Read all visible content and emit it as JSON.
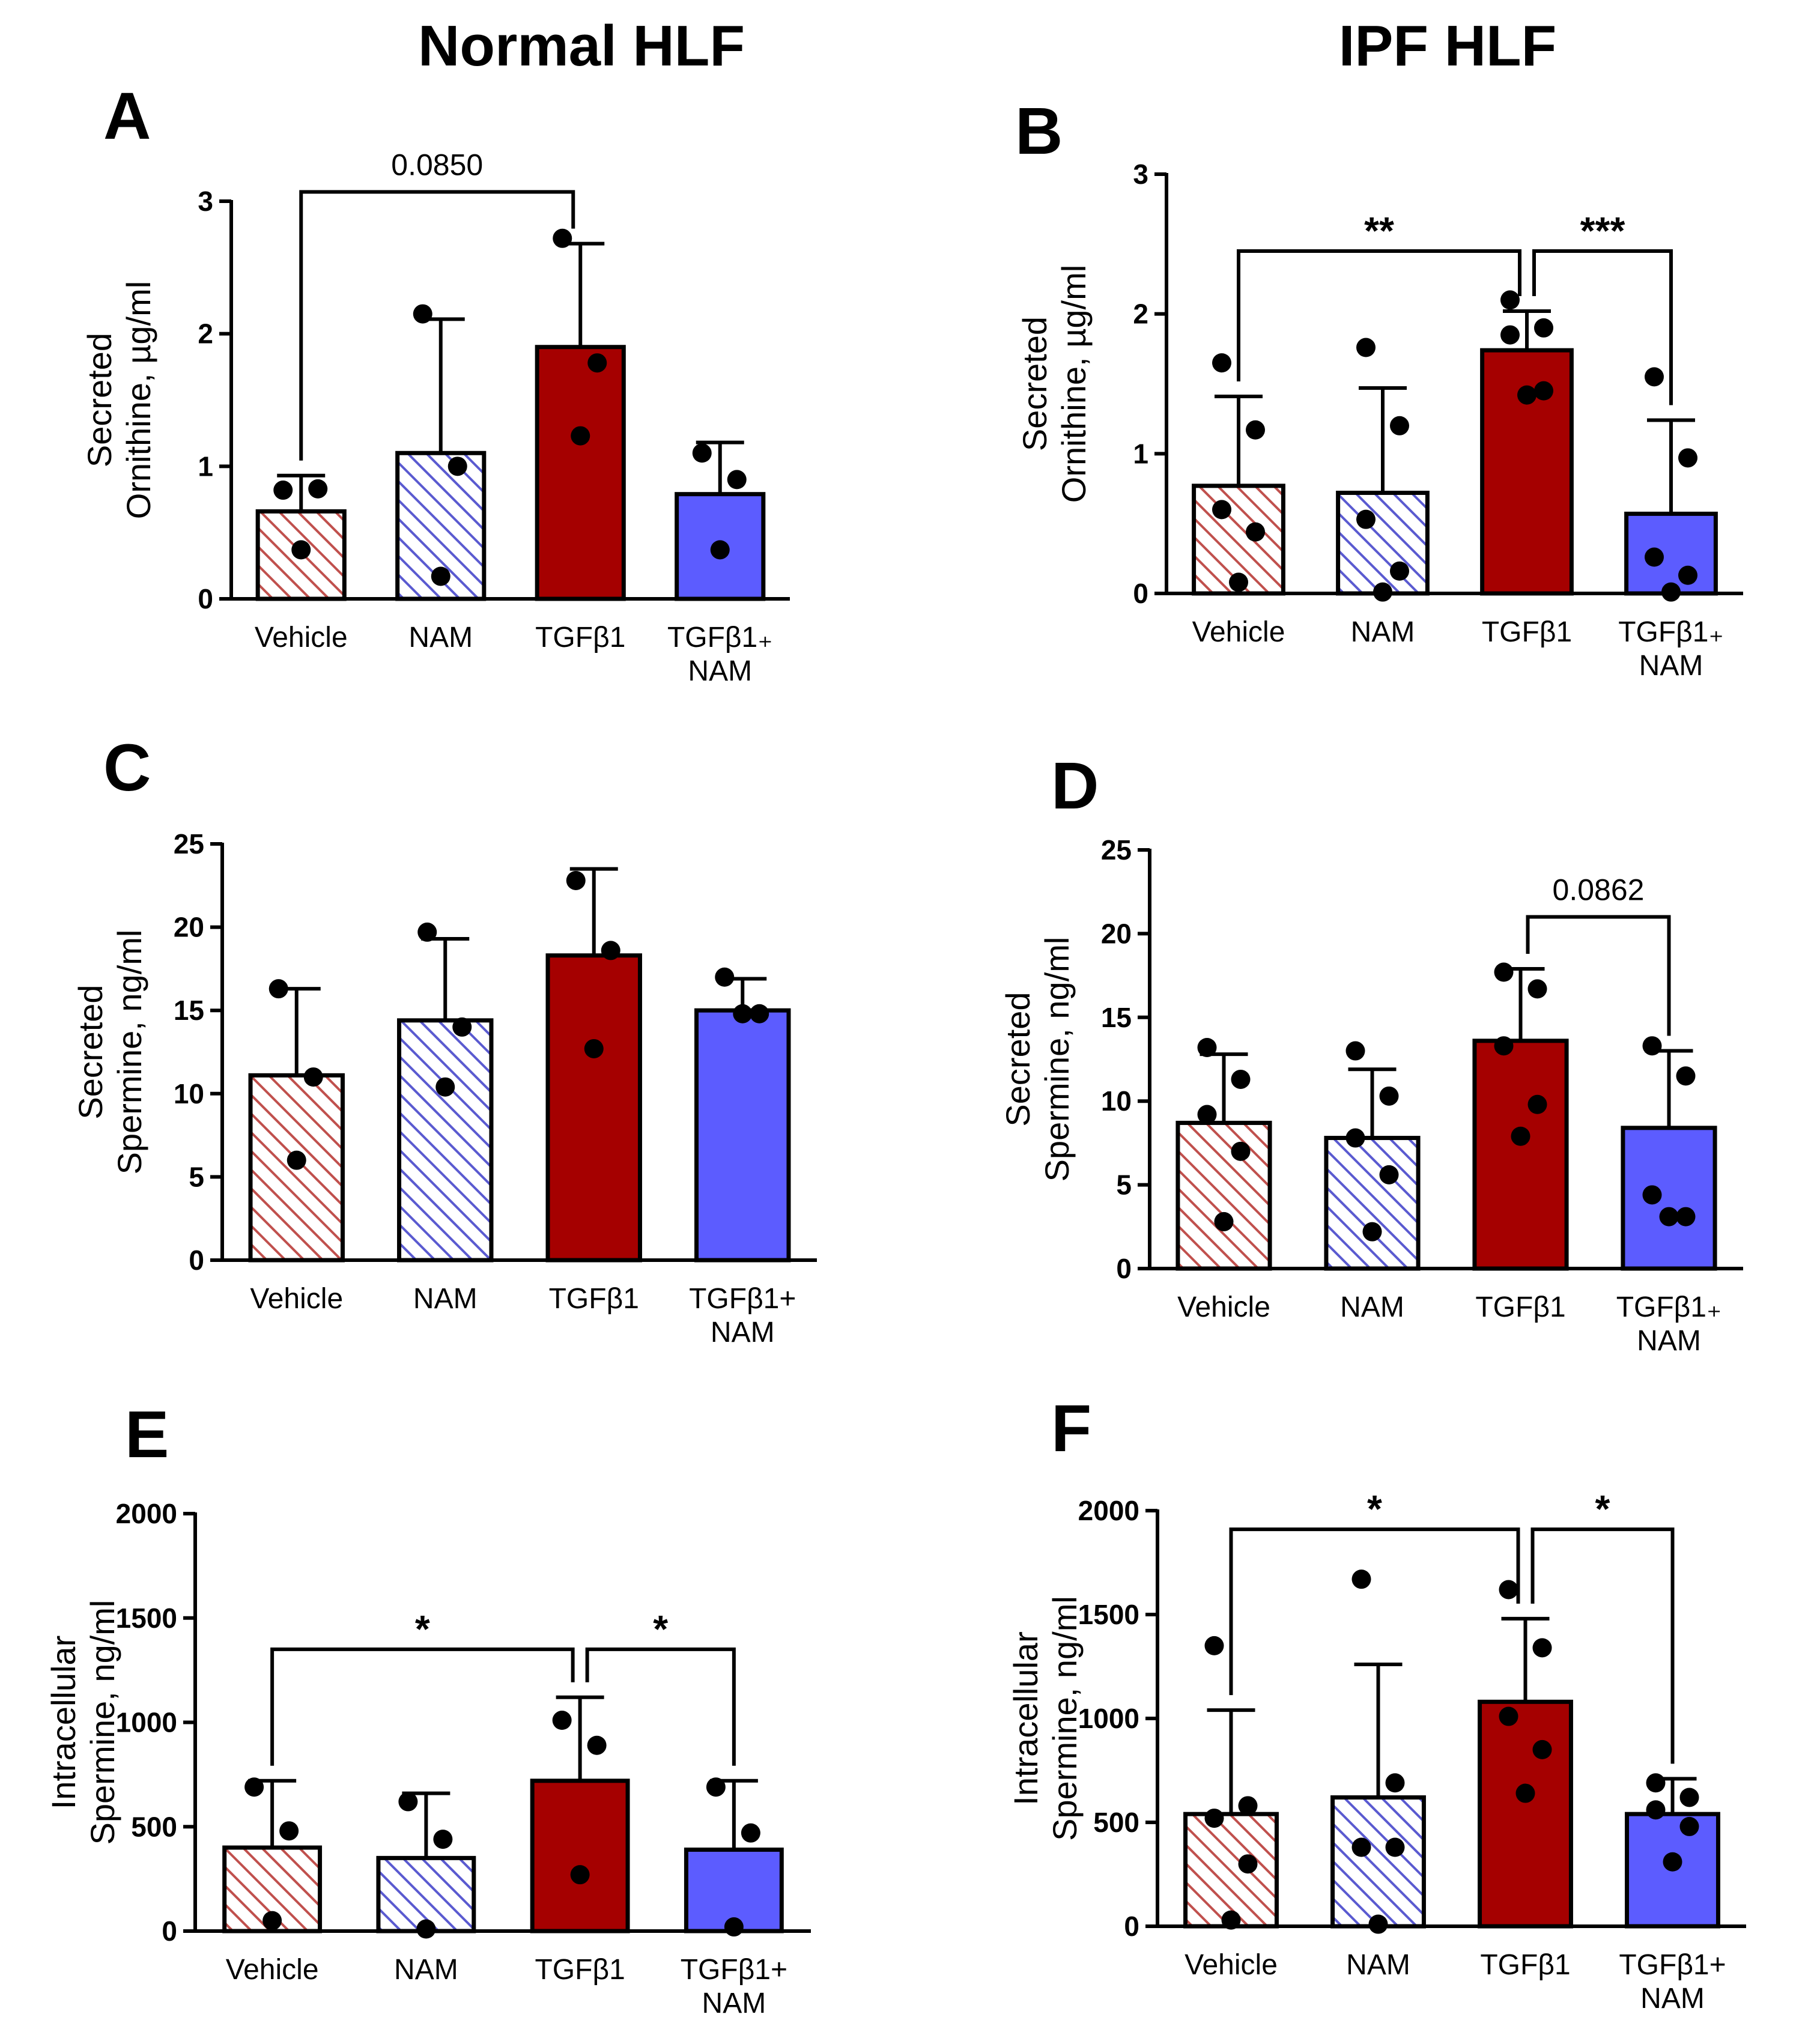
{
  "column_titles": {
    "left": "Normal HLF",
    "right": "IPF HLF"
  },
  "colors": {
    "vehicle": "#c0504d",
    "nam": "#5a5ad0",
    "tgfb1": "#a50000",
    "tgfb1_nam": "#5c5cff"
  },
  "chart_data": [
    {
      "id": "A",
      "type": "bar",
      "label": "A",
      "ylabel_line1": "Secreted",
      "ylabel_line2": "Ornithine, µg/ml",
      "categories": [
        "Vehicle",
        "NAM",
        "TGFβ1",
        "TGFβ1+NAM"
      ],
      "category_labels": [
        [
          "Vehicle"
        ],
        [
          "NAM"
        ],
        [
          "TGFβ1"
        ],
        [
          "TGFβ1₊",
          "NAM"
        ]
      ],
      "ylim": [
        0,
        3
      ],
      "yticks": [
        0,
        1,
        2,
        3
      ],
      "ytick_labels": [
        "0",
        "1",
        "2",
        "3"
      ],
      "values": [
        0.66,
        1.1,
        1.9,
        0.79
      ],
      "errors": [
        0.27,
        1.01,
        0.78,
        0.39
      ],
      "points": [
        [
          0.82,
          0.83,
          0.37
        ],
        [
          2.15,
          1.0,
          0.17
        ],
        [
          2.72,
          1.78,
          1.23
        ],
        [
          1.1,
          0.9,
          0.37
        ]
      ],
      "brackets": [
        {
          "from": 0,
          "to": 2,
          "label": "0.0850",
          "level": 3.07
        }
      ]
    },
    {
      "id": "B",
      "type": "bar",
      "label": "B",
      "ylabel_line1": "Secreted",
      "ylabel_line2": "Ornithine, µg/ml",
      "categories": [
        "Vehicle",
        "NAM",
        "TGFβ1",
        "TGFβ1+NAM"
      ],
      "category_labels": [
        [
          "Vehicle"
        ],
        [
          "NAM"
        ],
        [
          "TGFβ1"
        ],
        [
          "TGFβ1₊",
          "NAM"
        ]
      ],
      "ylim": [
        0,
        3
      ],
      "yticks": [
        0,
        1,
        2,
        3
      ],
      "ytick_labels": [
        "0",
        "1",
        "2",
        "3"
      ],
      "values": [
        0.77,
        0.72,
        1.74,
        0.57
      ],
      "errors": [
        0.64,
        0.75,
        0.28,
        0.67
      ],
      "points": [
        [
          1.65,
          1.17,
          0.6,
          0.44,
          0.08
        ],
        [
          1.76,
          1.2,
          0.53,
          0.16,
          0.01
        ],
        [
          2.1,
          1.9,
          1.85,
          1.45,
          1.42
        ],
        [
          1.55,
          0.97,
          0.26,
          0.13,
          0.01
        ]
      ],
      "brackets": [
        {
          "from": 0,
          "to": 2,
          "label": "**",
          "level": 2.45
        },
        {
          "from": 2,
          "to": 3,
          "label": "***",
          "level": 2.45
        }
      ]
    },
    {
      "id": "C",
      "type": "bar",
      "label": "C",
      "ylabel_line1": "Secreted",
      "ylabel_line2": "Spermine, ng/ml",
      "categories": [
        "Vehicle",
        "NAM",
        "TGFβ1",
        "TGFβ1+NAM"
      ],
      "category_labels": [
        [
          "Vehicle"
        ],
        [
          "NAM"
        ],
        [
          "TGFβ1"
        ],
        [
          "TGFβ1+",
          "NAM"
        ]
      ],
      "ylim": [
        0,
        25
      ],
      "yticks": [
        0,
        5,
        10,
        15,
        20,
        25
      ],
      "ytick_labels": [
        "0",
        "5",
        "10",
        "15",
        "20",
        "25"
      ],
      "values": [
        11.1,
        14.4,
        18.3,
        15.0
      ],
      "errors": [
        5.2,
        4.9,
        5.2,
        1.9
      ],
      "points": [
        [
          16.3,
          11.0,
          6.0
        ],
        [
          19.7,
          14.0,
          10.4
        ],
        [
          22.8,
          18.6,
          12.7
        ],
        [
          17.0,
          14.8,
          14.8
        ]
      ],
      "brackets": []
    },
    {
      "id": "D",
      "type": "bar",
      "label": "D",
      "ylabel_line1": "Secreted",
      "ylabel_line2": "Spermine, ng/ml",
      "categories": [
        "Vehicle",
        "NAM",
        "TGFβ1",
        "TGFβ1+NAM"
      ],
      "category_labels": [
        [
          "Vehicle"
        ],
        [
          "NAM"
        ],
        [
          "TGFβ1"
        ],
        [
          "TGFβ1₊",
          "NAM"
        ]
      ],
      "ylim": [
        0,
        25
      ],
      "yticks": [
        0,
        5,
        10,
        15,
        20,
        25
      ],
      "ytick_labels": [
        "0",
        "5",
        "10",
        "15",
        "20",
        "25"
      ],
      "values": [
        8.7,
        7.8,
        13.6,
        8.4
      ],
      "errors": [
        4.1,
        4.1,
        4.3,
        4.6
      ],
      "points": [
        [
          13.2,
          11.3,
          9.2,
          7.0,
          2.8
        ],
        [
          13.0,
          10.3,
          7.8,
          5.6,
          2.2
        ],
        [
          17.7,
          16.7,
          13.3,
          9.8,
          7.9
        ],
        [
          13.3,
          11.5,
          4.4,
          3.1,
          3.1
        ]
      ],
      "brackets": [
        {
          "from": 2,
          "to": 3,
          "label": "0.0862",
          "level": 21.0
        }
      ]
    },
    {
      "id": "E",
      "type": "bar",
      "label": "E",
      "ylabel_line1": "Intracellular",
      "ylabel_line2": "Spermine, ng/ml",
      "categories": [
        "Vehicle",
        "NAM",
        "TGFβ1",
        "TGFβ1+NAM"
      ],
      "category_labels": [
        [
          "Vehicle"
        ],
        [
          "NAM"
        ],
        [
          "TGFβ1"
        ],
        [
          "TGFβ1+",
          "NAM"
        ]
      ],
      "ylim": [
        0,
        2000
      ],
      "yticks": [
        0,
        500,
        1000,
        1500,
        2000
      ],
      "ytick_labels": [
        "0",
        "500",
        "1000",
        "1500",
        "2000"
      ],
      "values": [
        400,
        350,
        720,
        390
      ],
      "errors": [
        320,
        310,
        400,
        330
      ],
      "points": [
        [
          690,
          480,
          50
        ],
        [
          620,
          440,
          10
        ],
        [
          1010,
          890,
          270
        ],
        [
          690,
          470,
          20
        ]
      ],
      "brackets": [
        {
          "from": 0,
          "to": 2,
          "label": "*",
          "level": 1350
        },
        {
          "from": 2,
          "to": 3,
          "label": "*",
          "level": 1350
        }
      ]
    },
    {
      "id": "F",
      "type": "bar",
      "label": "F",
      "ylabel_line1": "Intracellular",
      "ylabel_line2": "Spermine, ng/ml",
      "categories": [
        "Vehicle",
        "NAM",
        "TGFβ1",
        "TGFβ1+NAM"
      ],
      "category_labels": [
        [
          "Vehicle"
        ],
        [
          "NAM"
        ],
        [
          "TGFβ1"
        ],
        [
          "TGFβ1+",
          "NAM"
        ]
      ],
      "ylim": [
        0,
        2000
      ],
      "yticks": [
        0,
        500,
        1000,
        1500,
        2000
      ],
      "ytick_labels": [
        "0",
        "500",
        "1000",
        "1500",
        "2000"
      ],
      "values": [
        540,
        620,
        1080,
        540
      ],
      "errors": [
        500,
        640,
        400,
        170
      ],
      "points": [
        [
          1350,
          580,
          520,
          300,
          30
        ],
        [
          1670,
          690,
          380,
          380,
          10
        ],
        [
          1620,
          1340,
          1010,
          850,
          640
        ],
        [
          690,
          620,
          560,
          480,
          310
        ]
      ],
      "brackets": [
        {
          "from": 0,
          "to": 2,
          "label": "*",
          "level": 1910
        },
        {
          "from": 2,
          "to": 3,
          "label": "*",
          "level": 1910
        }
      ]
    }
  ]
}
